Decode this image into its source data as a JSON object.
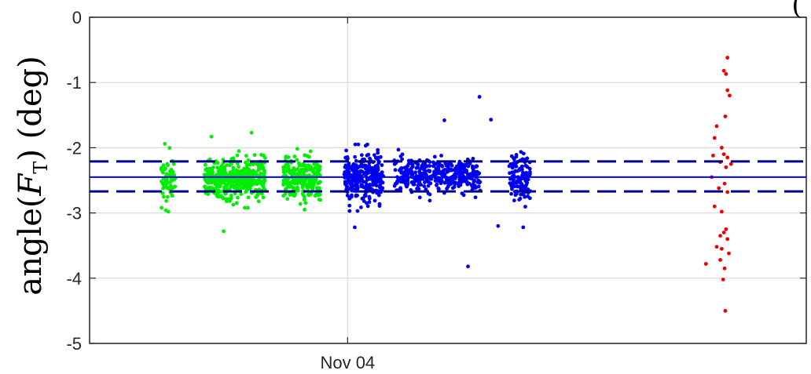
{
  "chart_data": {
    "type": "scatter",
    "title": "",
    "xlabel": "",
    "ylabel": {
      "prefix": "angle(",
      "symbol": "F",
      "subscript": "T",
      "suffix": ") (deg)"
    },
    "corner_glyph": "(",
    "x_ticks": [
      "Nov 04"
    ],
    "y_ticks": [
      "0",
      "-1",
      "-2",
      "-3",
      "-4",
      "-5"
    ],
    "ylim": [
      -5,
      0
    ],
    "x_unit": "days relative to Nov 04",
    "xlim": [
      -3.6,
      6.4
    ],
    "grid": true,
    "colors": {
      "green": "#00ee00",
      "blue": "#0000ee",
      "red": "#ee0000",
      "mean_line": "#0000ff",
      "band_line": "#00008b",
      "grid": "#dcdcdc",
      "axis": "#262626"
    },
    "reference_lines": {
      "mean": -2.45,
      "upper": -2.21,
      "lower": -2.67
    },
    "series": [
      {
        "color_key": "green",
        "clusters": [
          {
            "x_start": -2.6,
            "x_end": -2.4,
            "mean": -2.48,
            "spread": 0.16,
            "count": 70
          },
          {
            "x_start": -2.0,
            "x_end": -1.15,
            "mean": -2.47,
            "spread": 0.15,
            "count": 420
          },
          {
            "x_start": -0.9,
            "x_end": -0.38,
            "mean": -2.46,
            "spread": 0.16,
            "count": 260
          }
        ],
        "extremes": [
          {
            "x": -1.73,
            "y": -3.28
          },
          {
            "x": -1.9,
            "y": -1.83
          },
          {
            "x": -1.34,
            "y": -1.77
          },
          {
            "x": -2.55,
            "y": -1.94
          },
          {
            "x": -2.5,
            "y": -2.98
          },
          {
            "x": -0.6,
            "y": -2.95
          }
        ]
      },
      {
        "color_key": "blue",
        "clusters": [
          {
            "x_start": -0.05,
            "x_end": 0.5,
            "mean": -2.46,
            "spread": 0.17,
            "count": 300
          },
          {
            "x_start": 0.65,
            "x_end": 1.85,
            "mean": -2.42,
            "spread": 0.13,
            "count": 380
          },
          {
            "x_start": 2.25,
            "x_end": 2.55,
            "mean": -2.45,
            "spread": 0.17,
            "count": 130
          }
        ],
        "extremes": [
          {
            "x": 1.84,
            "y": -1.22
          },
          {
            "x": 1.68,
            "y": -3.82
          },
          {
            "x": 1.35,
            "y": -1.58
          },
          {
            "x": 2.0,
            "y": -1.57
          },
          {
            "x": 0.1,
            "y": -3.22
          },
          {
            "x": 2.45,
            "y": -3.22
          },
          {
            "x": 2.1,
            "y": -3.2
          }
        ]
      },
      {
        "color_key": "red",
        "points": [
          {
            "x": 5.3,
            "y": -0.62
          },
          {
            "x": 5.25,
            "y": -0.82
          },
          {
            "x": 5.28,
            "y": -0.87
          },
          {
            "x": 5.3,
            "y": -1.12
          },
          {
            "x": 5.33,
            "y": -1.2
          },
          {
            "x": 5.27,
            "y": -1.52
          },
          {
            "x": 5.15,
            "y": -1.67
          },
          {
            "x": 5.12,
            "y": -1.85
          },
          {
            "x": 5.22,
            "y": -2.0
          },
          {
            "x": 5.1,
            "y": -2.12
          },
          {
            "x": 5.25,
            "y": -2.1
          },
          {
            "x": 5.3,
            "y": -2.15
          },
          {
            "x": 5.2,
            "y": -2.22
          },
          {
            "x": 5.28,
            "y": -2.3
          },
          {
            "x": 5.35,
            "y": -2.25
          },
          {
            "x": 5.08,
            "y": -2.45
          },
          {
            "x": 5.26,
            "y": -2.55
          },
          {
            "x": 5.18,
            "y": -2.62
          },
          {
            "x": 5.3,
            "y": -2.68
          },
          {
            "x": 5.12,
            "y": -2.9
          },
          {
            "x": 5.22,
            "y": -2.98
          },
          {
            "x": 5.28,
            "y": -3.25
          },
          {
            "x": 5.25,
            "y": -3.3
          },
          {
            "x": 5.3,
            "y": -3.4
          },
          {
            "x": 5.15,
            "y": -3.52
          },
          {
            "x": 5.22,
            "y": -3.55
          },
          {
            "x": 5.32,
            "y": -3.62
          },
          {
            "x": 5.2,
            "y": -3.72
          },
          {
            "x": 5.0,
            "y": -3.78
          },
          {
            "x": 5.26,
            "y": -3.85
          },
          {
            "x": 5.24,
            "y": -4.02
          },
          {
            "x": 5.2,
            "y": -3.35
          },
          {
            "x": 5.27,
            "y": -4.5
          }
        ]
      }
    ]
  }
}
